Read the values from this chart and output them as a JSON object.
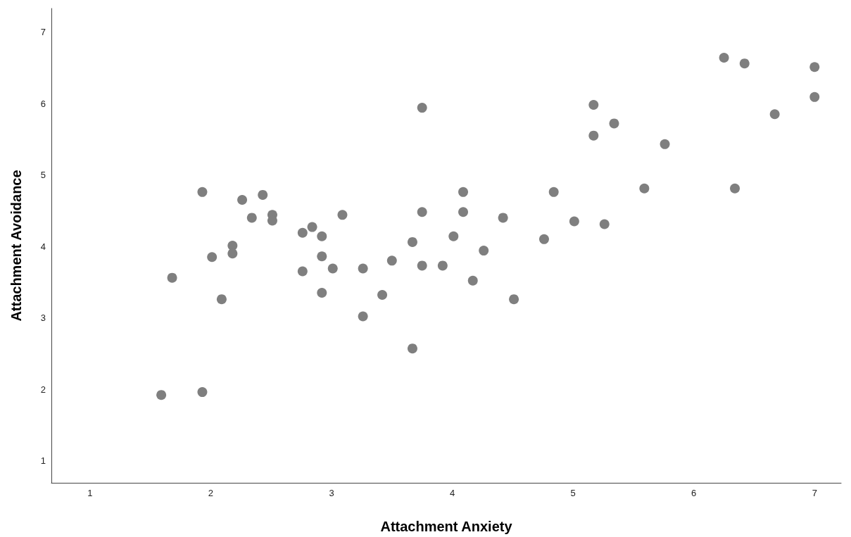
{
  "chart_data": {
    "type": "scatter",
    "xlabel": "Attachment Anxiety",
    "ylabel": "Attachment Avoidance",
    "xlim": [
      0.68,
      7.22
    ],
    "xticks": [
      1,
      2,
      3,
      4,
      5,
      6,
      7
    ],
    "ylim": [
      0.69,
      7.33
    ],
    "yticks": [
      1,
      2,
      3,
      4,
      5,
      6,
      7
    ],
    "grid": false,
    "marker": "circle",
    "series": [
      {
        "color": "#7f7f7f",
        "x": [
          1.59,
          1.68,
          1.93,
          1.93,
          2.01,
          2.09,
          2.18,
          2.18,
          2.26,
          2.34,
          2.43,
          2.51,
          2.51,
          2.76,
          2.76,
          2.84,
          2.92,
          2.92,
          2.92,
          3.01,
          3.09,
          3.26,
          3.26,
          3.42,
          3.5,
          3.67,
          3.67,
          3.75,
          3.75,
          3.75,
          3.92,
          4.01,
          4.09,
          4.09,
          4.17,
          4.26,
          4.42,
          4.51,
          4.76,
          4.84,
          5.01,
          5.17,
          5.17,
          5.26,
          5.34,
          5.59,
          5.76,
          6.25,
          6.34,
          6.42,
          6.67,
          7.0,
          7.0
        ],
        "values": [
          1.92,
          3.56,
          4.76,
          1.96,
          3.85,
          3.26,
          4.01,
          3.9,
          4.65,
          4.4,
          4.72,
          4.44,
          4.36,
          4.19,
          3.65,
          4.27,
          4.14,
          3.86,
          3.35,
          3.69,
          4.44,
          3.69,
          3.02,
          3.32,
          3.8,
          4.06,
          2.57,
          5.94,
          4.48,
          3.73,
          3.73,
          4.14,
          4.76,
          4.48,
          3.52,
          3.94,
          4.4,
          3.26,
          4.1,
          4.76,
          4.35,
          5.98,
          5.55,
          4.31,
          5.72,
          4.81,
          5.43,
          6.64,
          4.81,
          6.56,
          5.85,
          6.51,
          6.09
        ]
      }
    ]
  }
}
